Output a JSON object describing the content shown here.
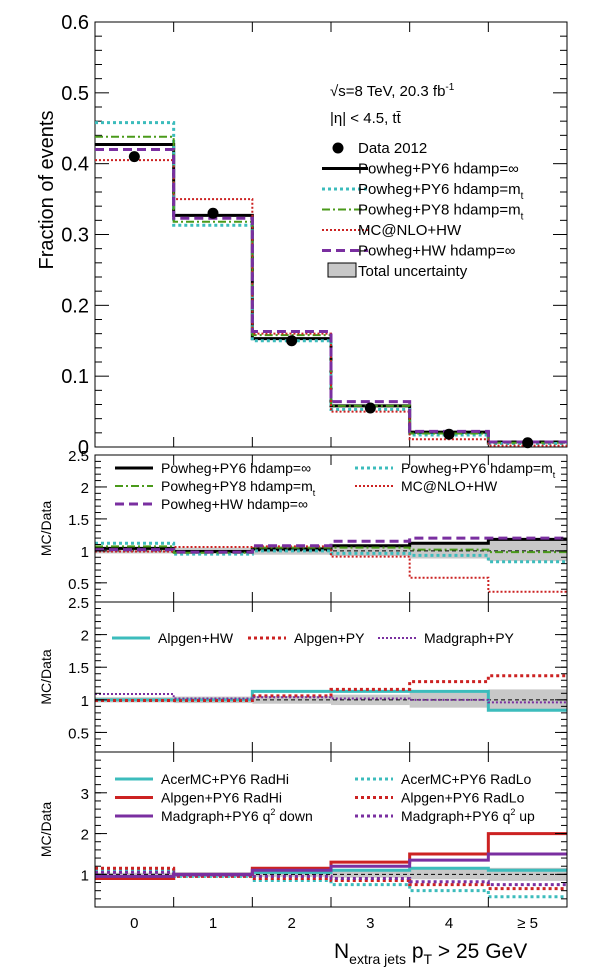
{
  "colors": {
    "black": "#000000",
    "teal": "#3cbcbc",
    "green": "#4a9a1a",
    "red": "#cc2222",
    "purple": "#7a2fa0",
    "gray": "#c8c8c8"
  },
  "bins": [
    "0",
    "1",
    "2",
    "3",
    "4",
    "≥ 5"
  ],
  "xlabel": {
    "main": "N",
    "sub": "extra jets",
    "p": "p",
    "psub": "T",
    "tail": " > 25 GeV"
  },
  "main_panel": {
    "ylabel": "Fraction of events",
    "ylim": [
      0,
      0.6
    ],
    "yticks": [
      "0",
      "0.1",
      "0.2",
      "0.3",
      "0.4",
      "0.5",
      "0.6"
    ],
    "info_line1": "√s=8 TeV, 20.3 fb",
    "info_line1_sup": "-1",
    "info_line2": "|η| < 4.5, tt̄",
    "data_label": "Data 2012",
    "data": [
      0.41,
      0.33,
      0.15,
      0.055,
      0.018,
      0.006
    ],
    "uncertainty_label": "Total uncertainty",
    "series": [
      {
        "name": "Powheg+PY6 hdamp=∞",
        "color": "black",
        "style": "solid",
        "width": 3,
        "values": [
          0.427,
          0.327,
          0.153,
          0.058,
          0.021,
          0.007
        ]
      },
      {
        "name": "Powheg+PY6 hdamp=m",
        "sub": "t",
        "color": "teal",
        "style": "dot",
        "width": 3,
        "values": [
          0.458,
          0.313,
          0.15,
          0.053,
          0.017,
          0.005
        ]
      },
      {
        "name": "Powheg+PY8 hdamp=m",
        "sub": "t",
        "color": "green",
        "style": "dashdot",
        "width": 2,
        "values": [
          0.438,
          0.318,
          0.158,
          0.058,
          0.019,
          0.006
        ]
      },
      {
        "name": "MC@NLO+HW",
        "color": "red",
        "style": "fine",
        "width": 2,
        "values": [
          0.405,
          0.35,
          0.16,
          0.05,
          0.011,
          0.002
        ]
      },
      {
        "name": "Powheg+HW hdamp=∞",
        "color": "purple",
        "style": "dash",
        "width": 3,
        "values": [
          0.42,
          0.323,
          0.163,
          0.064,
          0.022,
          0.007
        ]
      }
    ]
  },
  "ratio_panels": [
    {
      "ylabel": "MC/Data",
      "ylim": [
        0.2,
        2.5
      ],
      "yticks": [
        0.5,
        1,
        1.5,
        2,
        2.5
      ],
      "ytick_labels": [
        "0.5",
        "1",
        "1.5",
        "2",
        "2.5"
      ],
      "band": [
        0.04,
        0.05,
        0.06,
        0.08,
        0.12,
        0.16
      ],
      "legend_rows": [
        [
          {
            "name": "Powheg+PY6 hdamp=∞",
            "color": "black",
            "style": "solid",
            "width": 3
          },
          {
            "name": "Powheg+PY6 hdamp=m",
            "sub": "t",
            "color": "teal",
            "style": "dot",
            "width": 3
          }
        ],
        [
          {
            "name": "Powheg+PY8 hdamp=m",
            "sub": "t",
            "color": "green",
            "style": "dashdot",
            "width": 2
          },
          {
            "name": "MC@NLO+HW",
            "color": "red",
            "style": "fine",
            "width": 2
          }
        ],
        [
          {
            "name": "Powheg+HW hdamp=∞",
            "color": "purple",
            "style": "dash",
            "width": 3
          }
        ]
      ],
      "series": [
        {
          "name": "Powheg+PY6 hdamp=∞",
          "color": "black",
          "style": "solid",
          "width": 3,
          "values": [
            1.04,
            0.99,
            1.03,
            1.08,
            1.12,
            1.18
          ]
        },
        {
          "name": "Powheg+PY6 hdamp=mt",
          "color": "teal",
          "style": "dot",
          "width": 3,
          "values": [
            1.12,
            0.95,
            1.0,
            0.96,
            0.93,
            0.83
          ]
        },
        {
          "name": "Powheg+PY8 hdamp=mt",
          "color": "green",
          "style": "dashdot",
          "width": 2,
          "values": [
            1.07,
            0.97,
            1.05,
            1.05,
            1.02,
            0.98
          ]
        },
        {
          "name": "MC@NLO+HW",
          "color": "red",
          "style": "fine",
          "width": 2,
          "values": [
            0.99,
            1.06,
            1.07,
            0.91,
            0.58,
            0.36
          ]
        },
        {
          "name": "Powheg+HW hdamp=∞",
          "color": "purple",
          "style": "dash",
          "width": 3,
          "values": [
            1.02,
            0.98,
            1.08,
            1.15,
            1.2,
            1.2
          ]
        }
      ]
    },
    {
      "ylabel": "MC/Data",
      "ylim": [
        0.2,
        2.5
      ],
      "yticks": [
        0.5,
        1,
        1.5,
        2,
        2.5
      ],
      "ytick_labels": [
        "0.5",
        "1",
        "1.5",
        "2",
        "2.5"
      ],
      "band": [
        0.04,
        0.05,
        0.06,
        0.08,
        0.12,
        0.16
      ],
      "legend_rows": [
        [
          {
            "name": "Alpgen+HW",
            "color": "teal",
            "style": "solid",
            "width": 3
          },
          {
            "name": "Alpgen+PY",
            "color": "red",
            "style": "dot",
            "width": 3
          },
          {
            "name": "Madgraph+PY",
            "color": "purple",
            "style": "fine",
            "width": 2
          }
        ]
      ],
      "series": [
        {
          "name": "Alpgen+HW",
          "color": "teal",
          "style": "solid",
          "width": 3,
          "values": [
            1.0,
            1.0,
            1.13,
            1.13,
            1.13,
            0.84
          ]
        },
        {
          "name": "Alpgen+PY",
          "color": "red",
          "style": "dot",
          "width": 3,
          "values": [
            0.99,
            0.99,
            1.06,
            1.16,
            1.28,
            1.37
          ]
        },
        {
          "name": "Madgraph+PY",
          "color": "purple",
          "style": "fine",
          "width": 2,
          "values": [
            1.09,
            1.02,
            1.04,
            1.02,
            1.0,
            0.96
          ]
        }
      ]
    },
    {
      "ylabel": "MC/Data",
      "ylim": [
        0.2,
        4.0
      ],
      "yticks": [
        1,
        2,
        3
      ],
      "ytick_labels": [
        "1",
        "2",
        "3"
      ],
      "band": [
        0.04,
        0.05,
        0.06,
        0.08,
        0.12,
        0.16
      ],
      "legend_rows": [
        [
          {
            "name": "AcerMC+PY6 RadHi",
            "color": "teal",
            "style": "solid",
            "width": 3
          },
          {
            "name": "AcerMC+PY6 RadLo",
            "color": "teal",
            "style": "dot",
            "width": 3
          }
        ],
        [
          {
            "name": "Alpgen+PY6 RadHi",
            "color": "red",
            "style": "solid",
            "width": 3
          },
          {
            "name": "Alpgen+PY6 RadLo",
            "color": "red",
            "style": "dot",
            "width": 3
          }
        ],
        [
          {
            "name": "Madgraph+PY6 q",
            "sup": "2",
            "tail": " down",
            "color": "purple",
            "style": "solid",
            "width": 3
          },
          {
            "name": "Madgraph+PY6 q",
            "sup": "2",
            "tail": " up",
            "color": "purple",
            "style": "dot",
            "width": 3
          }
        ]
      ],
      "series": [
        {
          "name": "AcerMC+PY6 RadHi",
          "color": "teal",
          "style": "solid",
          "width": 3,
          "values": [
            0.9,
            1.0,
            1.05,
            1.1,
            1.15,
            1.1
          ]
        },
        {
          "name": "AcerMC+PY6 RadLo",
          "color": "teal",
          "style": "dot",
          "width": 3,
          "values": [
            1.1,
            0.95,
            0.85,
            0.75,
            0.6,
            0.45
          ]
        },
        {
          "name": "Alpgen+PY6 RadHi",
          "color": "red",
          "style": "solid",
          "width": 3,
          "values": [
            0.9,
            1.0,
            1.15,
            1.3,
            1.5,
            2.0
          ]
        },
        {
          "name": "Alpgen+PY6 RadLo",
          "color": "red",
          "style": "dot",
          "width": 3,
          "values": [
            1.15,
            0.95,
            0.9,
            0.85,
            0.75,
            0.65
          ]
        },
        {
          "name": "Madgraph+PY6 q2 down",
          "color": "purple",
          "style": "solid",
          "width": 3,
          "values": [
            0.95,
            1.0,
            1.1,
            1.2,
            1.35,
            1.5
          ]
        },
        {
          "name": "Madgraph+PY6 q2 up",
          "color": "purple",
          "style": "dot",
          "width": 3,
          "values": [
            1.05,
            0.98,
            0.95,
            0.9,
            0.82,
            0.75
          ]
        }
      ]
    }
  ]
}
